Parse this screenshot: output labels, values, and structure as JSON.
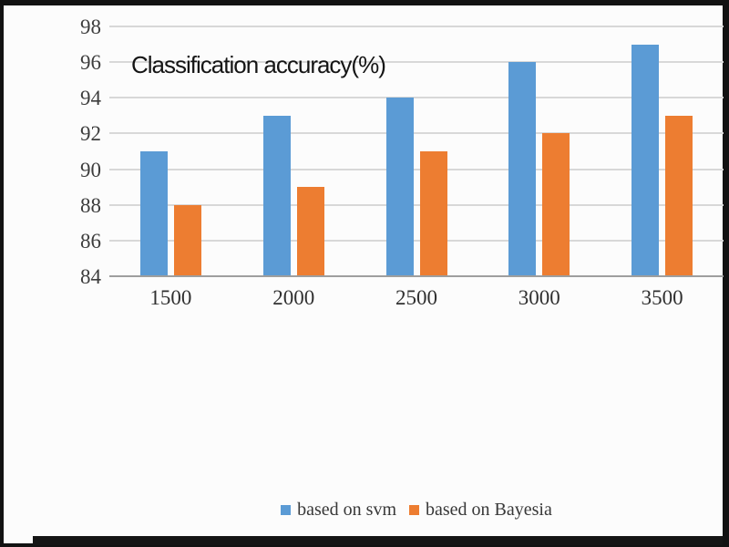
{
  "chart_data": {
    "type": "bar",
    "title": "Classification accuracy(%)",
    "categories": [
      "1500",
      "2000",
      "2500",
      "3000",
      "3500"
    ],
    "series": [
      {
        "name": "based on svm",
        "color": "#5B9BD5",
        "values": [
          91,
          93,
          94,
          96,
          97
        ]
      },
      {
        "name": "based on Bayesia",
        "color": "#ED7D31",
        "values": [
          88,
          89,
          91,
          92,
          93
        ]
      }
    ],
    "xlabel": "",
    "ylabel": "",
    "ylim": [
      84,
      98
    ],
    "y_step": 2,
    "y_tick_labels": [
      "84",
      "86",
      "88",
      "90",
      "92",
      "94",
      "96",
      "98"
    ],
    "grid": true,
    "legend_position": "bottom",
    "colors": {
      "background": "#fcfcfc",
      "frame": "#121212",
      "grid_line": "#d8d8d8",
      "axis_line": "#9e9e9e",
      "title_text": "#151515",
      "tick_text": "#3d3d3d",
      "legend_text": "#383838"
    }
  }
}
